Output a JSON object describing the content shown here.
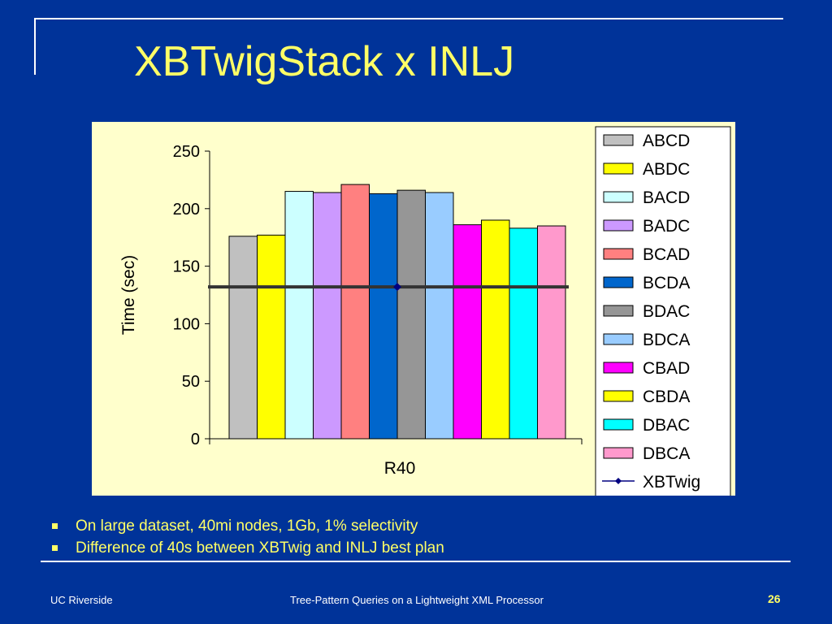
{
  "slide": {
    "title": "XBTwigStack x INLJ",
    "bullets": [
      "On large dataset, 40mi nodes, 1Gb, 1% selectivity",
      "Difference of 40s between XBTwig and INLJ best plan"
    ],
    "footer_left": "UC Riverside",
    "footer_center": "Tree-Pattern Queries on a Lightweight XML Processor",
    "page_number": "26"
  },
  "colors": {
    "background": "#003399",
    "title": "#ffff66",
    "plot_area": "#ffffcc"
  },
  "chart_data": {
    "type": "bar",
    "categories": [
      "R40"
    ],
    "ylabel": "Time (sec)",
    "xlabel": "",
    "ylim": [
      0,
      250
    ],
    "yticks": [
      0,
      50,
      100,
      150,
      200,
      250
    ],
    "grid": false,
    "legend_position": "right",
    "series": [
      {
        "name": "ABCD",
        "values": [
          176
        ],
        "color": "#c0c0c0"
      },
      {
        "name": "ABDC",
        "values": [
          177
        ],
        "color": "#ffff00"
      },
      {
        "name": "BACD",
        "values": [
          215
        ],
        "color": "#ccffff"
      },
      {
        "name": "BADC",
        "values": [
          214
        ],
        "color": "#cc99ff"
      },
      {
        "name": "BCAD",
        "values": [
          221
        ],
        "color": "#ff8080"
      },
      {
        "name": "BCDA",
        "values": [
          213
        ],
        "color": "#0066cc"
      },
      {
        "name": "BDAC",
        "values": [
          216
        ],
        "color": "#969696"
      },
      {
        "name": "BDCA",
        "values": [
          214
        ],
        "color": "#99ccff"
      },
      {
        "name": "CBAD",
        "values": [
          186
        ],
        "color": "#ff00ff"
      },
      {
        "name": "CBDA",
        "values": [
          190
        ],
        "color": "#ffff00"
      },
      {
        "name": "DBAC",
        "values": [
          183
        ],
        "color": "#00ffff"
      },
      {
        "name": "DBCA",
        "values": [
          185
        ],
        "color": "#ff99cc"
      }
    ],
    "line_series": {
      "name": "XBTwig",
      "values": [
        132
      ],
      "color": "#333333",
      "marker_color": "#000080"
    }
  }
}
